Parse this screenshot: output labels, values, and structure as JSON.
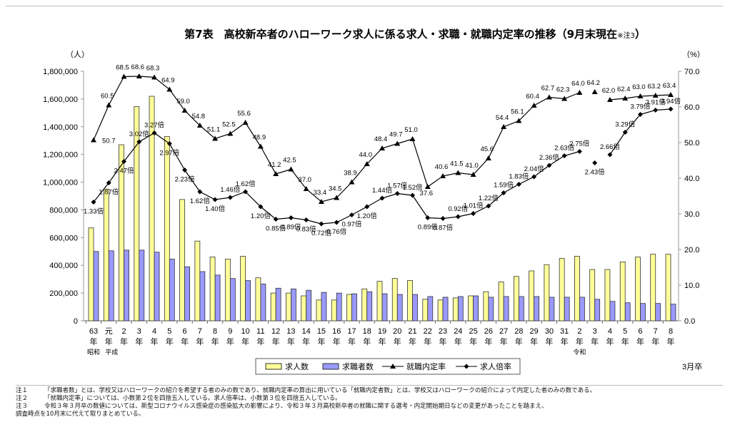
{
  "title": "第7表　高校新卒者のハローワーク求人に係る求人・求職・就職内定率の推移（9月末現在",
  "title_note": "※注3",
  "title_close": "）",
  "footer_right": "3月卒",
  "notes": [
    {
      "label": "注１",
      "text": "「求職者数」とは、学校又はハローワークの紹介を希望する者のみの数であり、就職内定率の算出に用いている「就職内定者数」とは、学校又はハローワークの紹介によって内定した者のみの数である。"
    },
    {
      "label": "注２",
      "text": "「就職内定率」については、小数第２位を四捨五入している。求人倍率は、小数第３位を四捨五入している。"
    },
    {
      "label": "注３",
      "text": "令和３年３月卒の数値については、新型コロナウイルス感染症の感染拡大の影響により、令和３年３月高校新卒者の就職に関する選考・内定開始期日などの変更があったことを踏まえ、",
      "cont": "調査時点を10月末に代えて取りまとめている。"
    }
  ],
  "chart_data": {
    "type": "bar+line",
    "ylabel_left": "（人）",
    "ylabel_right": "（%）",
    "ylim_left": [
      0,
      1800000
    ],
    "yticks_left": [
      "0",
      "200,000",
      "400,000",
      "600,000",
      "800,000",
      "1,000,000",
      "1,200,000",
      "1,400,000",
      "1,600,000",
      "1,800,000"
    ],
    "ylim_right": [
      0,
      70
    ],
    "yticks_right": [
      "0.0",
      "10.0",
      "20.0",
      "30.0",
      "40.0",
      "50.0",
      "60.0",
      "70.0"
    ],
    "categories": [
      "63",
      "元",
      "2",
      "3",
      "4",
      "5",
      "6",
      "7",
      "8",
      "9",
      "10",
      "11",
      "12",
      "13",
      "14",
      "15",
      "16",
      "17",
      "18",
      "19",
      "20",
      "21",
      "22",
      "23",
      "24",
      "25",
      "26",
      "27",
      "28",
      "29",
      "30",
      "31",
      "2",
      "3",
      "4",
      "5",
      "6",
      "7",
      "8"
    ],
    "category_suffix": "年",
    "era_labels": [
      {
        "index": 0,
        "text": "昭和"
      },
      {
        "index": 1,
        "text": "平成"
      },
      {
        "index": 32,
        "text": "令和"
      }
    ],
    "legend_placement": "bottom",
    "series": [
      {
        "name": "求人数",
        "type": "bar",
        "axis": "left",
        "color": "#ffff99",
        "values": [
          670000,
          950000,
          1270000,
          1545000,
          1620000,
          1330000,
          875000,
          575000,
          460000,
          445000,
          465000,
          310000,
          200000,
          200000,
          180000,
          150000,
          150000,
          190000,
          230000,
          285000,
          305000,
          290000,
          155000,
          150000,
          165000,
          180000,
          210000,
          280000,
          320000,
          360000,
          405000,
          450000,
          465000,
          370000,
          370000,
          425000,
          460000,
          480000,
          480000
        ]
      },
      {
        "name": "求職者数",
        "type": "bar",
        "axis": "left",
        "color": "#9999ff",
        "values": [
          500000,
          505000,
          510000,
          510000,
          495000,
          445000,
          390000,
          355000,
          330000,
          305000,
          290000,
          265000,
          235000,
          230000,
          220000,
          205000,
          200000,
          195000,
          210000,
          195000,
          190000,
          190000,
          175000,
          170000,
          175000,
          180000,
          170000,
          175000,
          175000,
          175000,
          170000,
          170000,
          170000,
          155000,
          140000,
          130000,
          125000,
          125000,
          120000
        ]
      },
      {
        "name": "就職内定率",
        "type": "line",
        "axis": "right",
        "marker": "triangle",
        "values": [
          50.7,
          60.5,
          68.5,
          68.6,
          68.3,
          64.9,
          59.0,
          54.8,
          51.1,
          52.5,
          55.6,
          48.9,
          41.2,
          42.5,
          37.0,
          33.4,
          34.5,
          38.9,
          44.0,
          48.4,
          49.7,
          51.0,
          37.6,
          40.6,
          41.5,
          41.0,
          45.6,
          54.4,
          56.1,
          60.4,
          62.7,
          62.3,
          64.0,
          64.2,
          62.0,
          62.4,
          63.0,
          63.2,
          63.4
        ],
        "labels": [
          "50.7",
          "60.5",
          "68.5",
          "68.6",
          "68.3",
          "64.9",
          "59.0",
          "54.8",
          "51.1",
          "52.5",
          "55.6",
          "48.9",
          "41.2",
          "42.5",
          "37.0",
          "33.4",
          "34.5",
          "38.9",
          "44.0",
          "48.4",
          "49.7",
          "51.0",
          "37.6",
          "40.6",
          "41.5",
          "41.0",
          "45.6",
          "54.4",
          "56.1",
          "60.4",
          "62.7",
          "62.3",
          "64.0",
          "64.2",
          "62.0",
          "62.4",
          "63.0",
          "63.2",
          "63.4"
        ]
      },
      {
        "name": "求人倍率",
        "type": "line",
        "marker": "diamond",
        "values": [
          1.33,
          1.87,
          2.47,
          3.02,
          3.27,
          2.97,
          2.23,
          1.62,
          1.4,
          1.46,
          1.62,
          1.2,
          0.85,
          0.89,
          0.83,
          0.72,
          0.76,
          0.97,
          1.2,
          1.44,
          1.57,
          1.52,
          0.89,
          0.87,
          0.92,
          1.01,
          1.22,
          1.59,
          1.83,
          2.04,
          2.36,
          2.63,
          2.75,
          2.43,
          2.66,
          3.29,
          3.79,
          3.91,
          3.94
        ],
        "labels": [
          "1.33倍",
          "1.87倍",
          "2.47倍",
          "3.02倍",
          "3.27倍",
          "2.97倍",
          "2.23倍",
          "1.62倍",
          "1.40倍",
          "1.46倍",
          "1.62倍",
          "1.20倍",
          "0.85倍",
          "0.89倍",
          "0.83倍",
          "0.72倍",
          "0.76倍",
          "0.97倍",
          "1.20倍",
          "1.44倍",
          "1.57倍",
          "1.52倍",
          "0.89倍",
          "0.87倍",
          "0.92倍",
          "1.01倍",
          "1.22倍",
          "1.59倍",
          "1.83倍",
          "2.04倍",
          "2.36倍",
          "2.63倍",
          "2.75倍",
          "2.43倍",
          "2.66倍",
          "3.29倍",
          "3.79倍",
          "3.91倍",
          "3.94倍"
        ]
      }
    ],
    "line_breaks_after_index": [
      32,
      33
    ]
  }
}
